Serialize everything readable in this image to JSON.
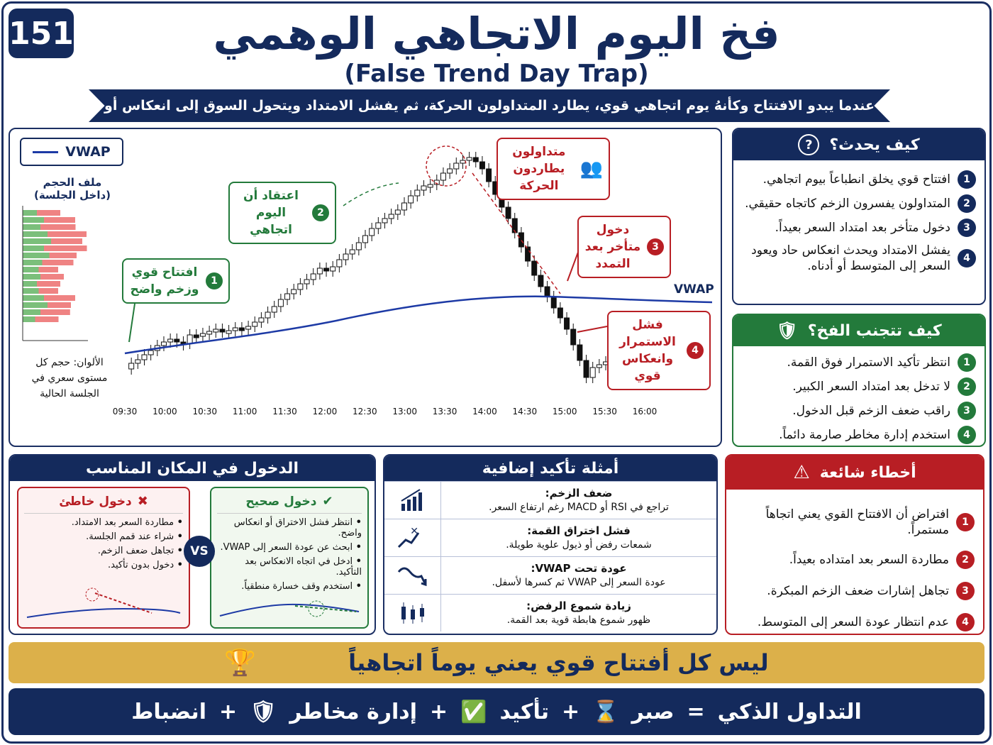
{
  "badge": "151",
  "title": "فخ اليوم الاتجاهي الوهمي",
  "subtitle": "(False Trend Day Trap)",
  "ribbon": "عندما يبدو الافتتاح وكأنهُ يوم اتجاهي قوي، يطارد المتداولون الحركة، ثم يفشل الامتداد ويتحول السوق إلى انعكاس أو نطاق.",
  "chart": {
    "legend": "VWAP",
    "vwap_label": "VWAP",
    "volume_title": "ملف الحجم",
    "volume_subtitle": "(داخل الجلسة)",
    "volume_note": "الألوان: حجم كل مستوى سعري في الجلسة الحالية",
    "times": [
      "09:30",
      "10:00",
      "10:30",
      "11:00",
      "11:30",
      "12:00",
      "12:30",
      "13:00",
      "13:30",
      "14:00",
      "14:30",
      "15:00",
      "15:30",
      "16:00"
    ],
    "callouts": {
      "c1_num": "1",
      "c1": "افتتاح قوي وزخم واضح",
      "c2_num": "2",
      "c2": "اعتقاد أن اليوم اتجاهي",
      "c3_num": "3",
      "c3": "دخول متأخر بعد التمدد",
      "c4_num": "4",
      "c4": "فشل الاستمرار وانعكاس قوي",
      "chasers": "متداولون يطاردون الحركة"
    },
    "colors": {
      "navy": "#142a5c",
      "green": "#237a3b",
      "red": "#b81e24"
    }
  },
  "how": {
    "title": "كيف يحدث؟",
    "items": [
      {
        "n": "1",
        "t": "افتتاح قوي يخلق انطباعاً بيوم اتجاهي."
      },
      {
        "n": "2",
        "t": "المتداولون يفسرون الزخم كاتجاه حقيقي."
      },
      {
        "n": "3",
        "t": "دخول متأخر بعد امتداد السعر بعيداً."
      },
      {
        "n": "4",
        "t": "يفشل الامتداد ويحدث انعكاس حاد ويعود السعر إلى المتوسط أو أدناه."
      }
    ]
  },
  "avoid": {
    "title": "كيف تتجنب الفخ؟",
    "items": [
      {
        "n": "1",
        "t": "انتظر تأكيد الاستمرار فوق القمة."
      },
      {
        "n": "2",
        "t": "لا تدخل بعد امتداد السعر الكبير."
      },
      {
        "n": "3",
        "t": "راقب ضعف الزخم قبل الدخول."
      },
      {
        "n": "4",
        "t": "استخدم إدارة مخاطر صارمة دائماً."
      }
    ]
  },
  "entry": {
    "title": "الدخول في المكان المناسب",
    "vs": "VS",
    "wrong": {
      "title": "دخول خاطئ",
      "items": [
        "مطاردة السعر بعد الامتداد.",
        "شراء عند قمم الجلسة.",
        "تجاهل ضعف الزخم.",
        "دخول بدون تأكيد."
      ]
    },
    "right": {
      "title": "دخول صحيح",
      "items": [
        "انتظر فشل الاختراق أو انعكاس واضح.",
        "ابحث عن عودة السعر إلى VWAP.",
        "ادخل في اتجاه الانعكاس بعد التأكيد.",
        "استخدم وقف خسارة منطقياً."
      ]
    }
  },
  "confirm": {
    "title": "أمثلة تأكيد إضافية",
    "rows": [
      {
        "h": "ضعف الزخم:",
        "t": "تراجع في RSI أو MACD رغم ارتفاع السعر.",
        "icon": "bars-up-icon"
      },
      {
        "h": "فشل اختراق القمة:",
        "t": "شمعات رفض أو ذيول علوية طويلة.",
        "icon": "failed-breakout-icon"
      },
      {
        "h": "عودة تحت VWAP:",
        "t": "عودة السعر إلى VWAP ثم كسرها لأسفل.",
        "icon": "wave-down-icon"
      },
      {
        "h": "زيادة شموع الرفض:",
        "t": "ظهور شموع هابطة قوية بعد القمة.",
        "icon": "candles-icon"
      }
    ]
  },
  "mistakes": {
    "title": "أخطاء شائعة",
    "items": [
      {
        "n": "1",
        "t": "افتراض أن الافتتاح القوي يعني اتجاهاً مستمراً."
      },
      {
        "n": "2",
        "t": "مطاردة السعر بعد امتداده بعيداً."
      },
      {
        "n": "3",
        "t": "تجاهل إشارات ضعف الزخم المبكرة."
      },
      {
        "n": "4",
        "t": "عدم انتظار عودة السعر إلى المتوسط."
      }
    ]
  },
  "banner": "ليس كل أفتتاح قوي يعني يوماً اتجاهياً",
  "footer": {
    "a": "التداول الذكي",
    "eq": "=",
    "b": "صبر",
    "plus": "+",
    "c": "تأكيد",
    "d": "إدارة مخاطر",
    "e": "انضباط"
  }
}
